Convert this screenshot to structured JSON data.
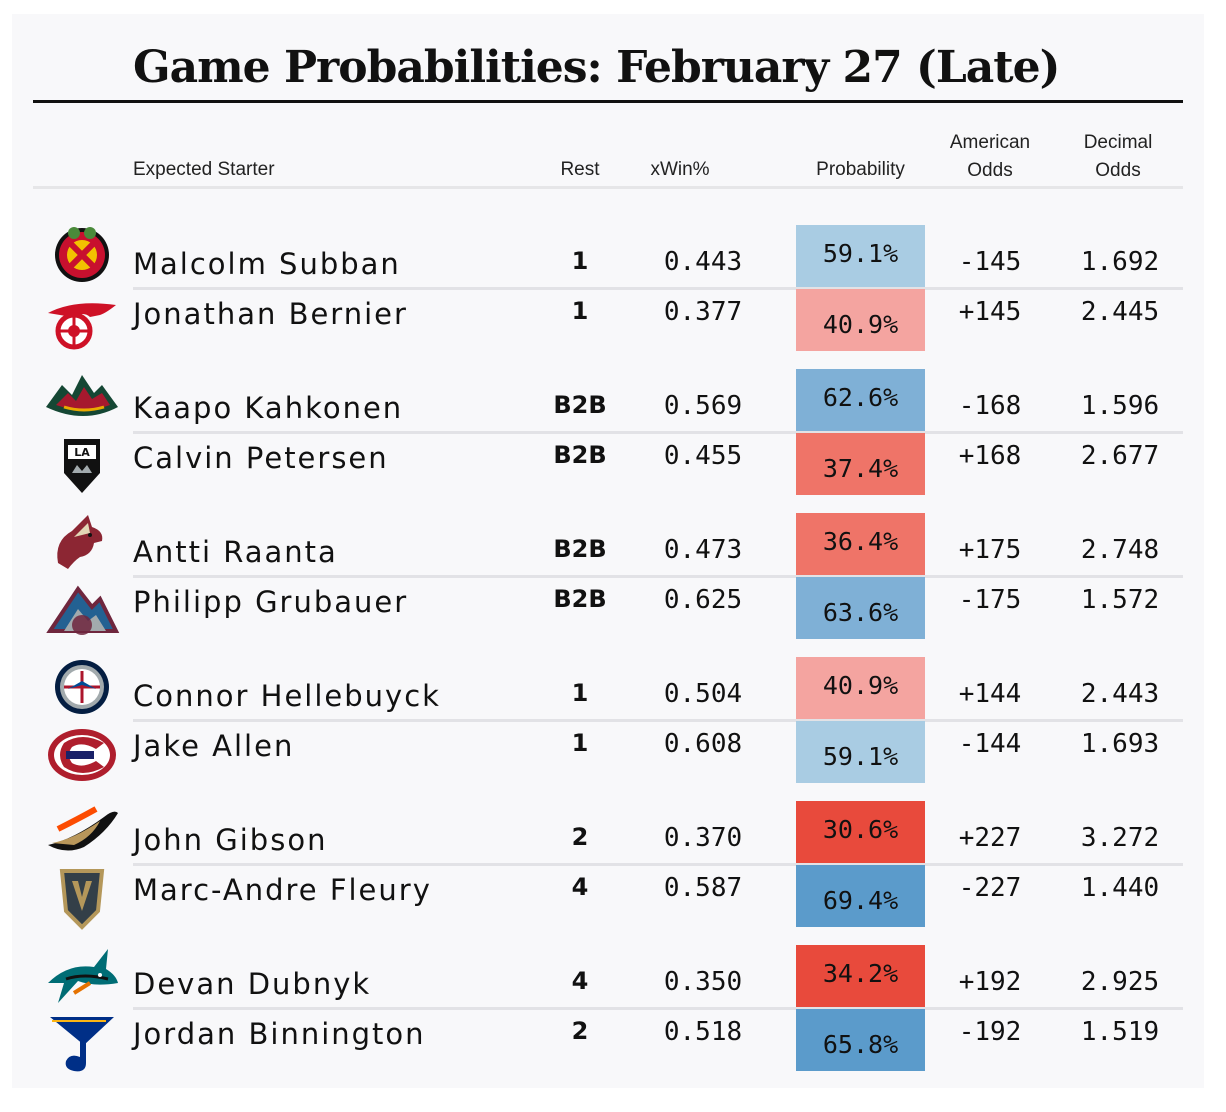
{
  "title": "Game Probabilities: February 27 (Late)",
  "headers": {
    "starter": "Expected Starter",
    "rest": "Rest",
    "xwin": "xWin%",
    "probability": "Probability",
    "american_line1": "American",
    "american_line2": "Odds",
    "decimal_line1": "Decimal",
    "decimal_line2": "Odds"
  },
  "colors": {
    "blue_light": "#a9cce3",
    "blue_mid": "#7fb0d6",
    "blue_strong": "#5b9bcb",
    "red_light": "#f4a4a0",
    "red_mid": "#ef7468",
    "red_strong": "#e84a3c"
  },
  "games": [
    {
      "teams": [
        {
          "logo": "blackhawks-logo-icon",
          "starter": "Malcolm Subban",
          "rest": "1",
          "xwin": "0.443",
          "probability": "59.1%",
          "prob_value": 59.1,
          "american": "-145",
          "decimal": "1.692"
        },
        {
          "logo": "red-wings-logo-icon",
          "starter": "Jonathan Bernier",
          "rest": "1",
          "xwin": "0.377",
          "probability": "40.9%",
          "prob_value": 40.9,
          "american": "+145",
          "decimal": "2.445"
        }
      ]
    },
    {
      "teams": [
        {
          "logo": "wild-logo-icon",
          "starter": "Kaapo Kahkonen",
          "rest": "B2B",
          "xwin": "0.569",
          "probability": "62.6%",
          "prob_value": 62.6,
          "american": "-168",
          "decimal": "1.596"
        },
        {
          "logo": "kings-logo-icon",
          "starter": "Calvin Petersen",
          "rest": "B2B",
          "xwin": "0.455",
          "probability": "37.4%",
          "prob_value": 37.4,
          "american": "+168",
          "decimal": "2.677"
        }
      ]
    },
    {
      "teams": [
        {
          "logo": "coyotes-logo-icon",
          "starter": "Antti Raanta",
          "rest": "B2B",
          "xwin": "0.473",
          "probability": "36.4%",
          "prob_value": 36.4,
          "american": "+175",
          "decimal": "2.748"
        },
        {
          "logo": "avalanche-logo-icon",
          "starter": "Philipp Grubauer",
          "rest": "B2B",
          "xwin": "0.625",
          "probability": "63.6%",
          "prob_value": 63.6,
          "american": "-175",
          "decimal": "1.572"
        }
      ]
    },
    {
      "teams": [
        {
          "logo": "jets-logo-icon",
          "starter": "Connor Hellebuyck",
          "rest": "1",
          "xwin": "0.504",
          "probability": "40.9%",
          "prob_value": 40.9,
          "american": "+144",
          "decimal": "2.443"
        },
        {
          "logo": "canadiens-logo-icon",
          "starter": "Jake Allen",
          "rest": "1",
          "xwin": "0.608",
          "probability": "59.1%",
          "prob_value": 59.1,
          "american": "-144",
          "decimal": "1.693"
        }
      ]
    },
    {
      "teams": [
        {
          "logo": "ducks-logo-icon",
          "starter": "John Gibson",
          "rest": "2",
          "xwin": "0.370",
          "probability": "30.6%",
          "prob_value": 30.6,
          "american": "+227",
          "decimal": "3.272"
        },
        {
          "logo": "golden-knights-logo-icon",
          "starter": "Marc-Andre Fleury",
          "rest": "4",
          "xwin": "0.587",
          "probability": "69.4%",
          "prob_value": 69.4,
          "american": "-227",
          "decimal": "1.440"
        }
      ]
    },
    {
      "teams": [
        {
          "logo": "sharks-logo-icon",
          "starter": "Devan Dubnyk",
          "rest": "4",
          "xwin": "0.350",
          "probability": "34.2%",
          "prob_value": 34.2,
          "american": "+192",
          "decimal": "2.925"
        },
        {
          "logo": "blues-logo-icon",
          "starter": "Jordan Binnington",
          "rest": "2",
          "xwin": "0.518",
          "probability": "65.8%",
          "prob_value": 65.8,
          "american": "-192",
          "decimal": "1.519"
        }
      ]
    }
  ]
}
